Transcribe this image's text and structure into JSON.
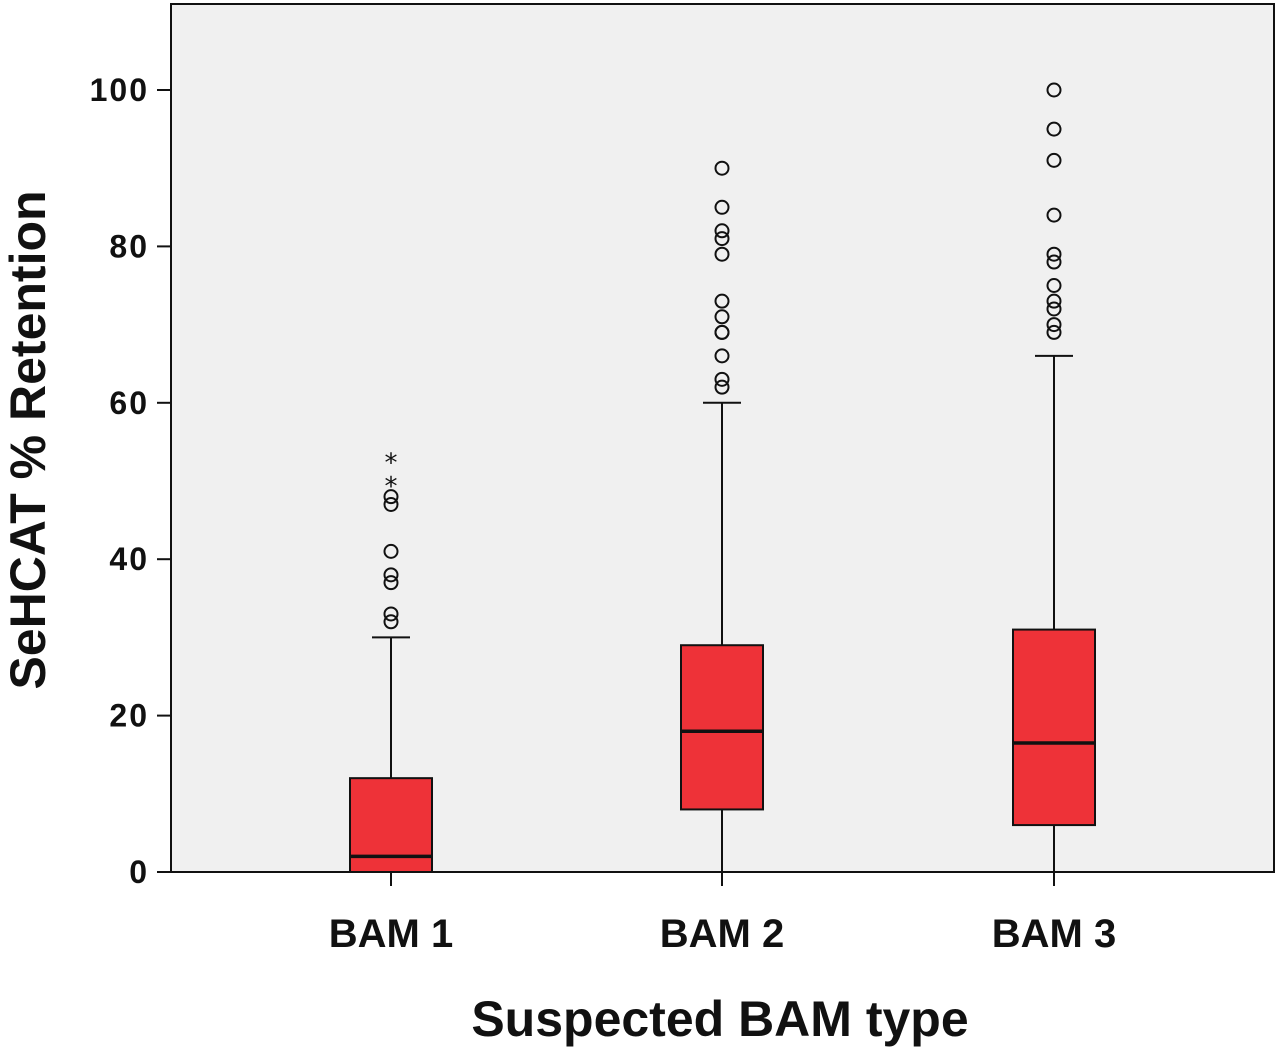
{
  "chart_data": {
    "type": "box",
    "title": "",
    "xlabel": "Suspected BAM type",
    "ylabel": "SeHCAT % Retention",
    "ylim": [
      0,
      110
    ],
    "yticks": [
      0,
      20,
      40,
      60,
      80,
      100
    ],
    "grid": false,
    "categories": [
      "BAM 1",
      "BAM 2",
      "BAM 3"
    ],
    "boxes": [
      {
        "category": "BAM 1",
        "whisker_low": 0,
        "q1": 0,
        "median": 2,
        "q3": 12,
        "whisker_high": 30,
        "outliers": [
          32,
          33,
          37,
          38,
          41,
          47,
          48
        ],
        "extremes": [
          50,
          53
        ]
      },
      {
        "category": "BAM 2",
        "whisker_low": 0,
        "q1": 8,
        "median": 18,
        "q3": 29,
        "whisker_high": 60,
        "outliers": [
          62,
          63,
          66,
          69,
          69,
          71,
          73,
          79,
          81,
          82,
          85,
          90
        ],
        "extremes": []
      },
      {
        "category": "BAM 3",
        "whisker_low": 0,
        "q1": 6,
        "median": 16.5,
        "q3": 31,
        "whisker_high": 66,
        "outliers": [
          69,
          70,
          72,
          73,
          75,
          78,
          79,
          84,
          91,
          95,
          100
        ],
        "extremes": []
      }
    ],
    "colors": {
      "box_fill": "#ee3238",
      "plot_bg": "#f0f0f0",
      "stroke": "#111111"
    },
    "outlier_marker": "circle",
    "extreme_marker": "asterisk"
  }
}
